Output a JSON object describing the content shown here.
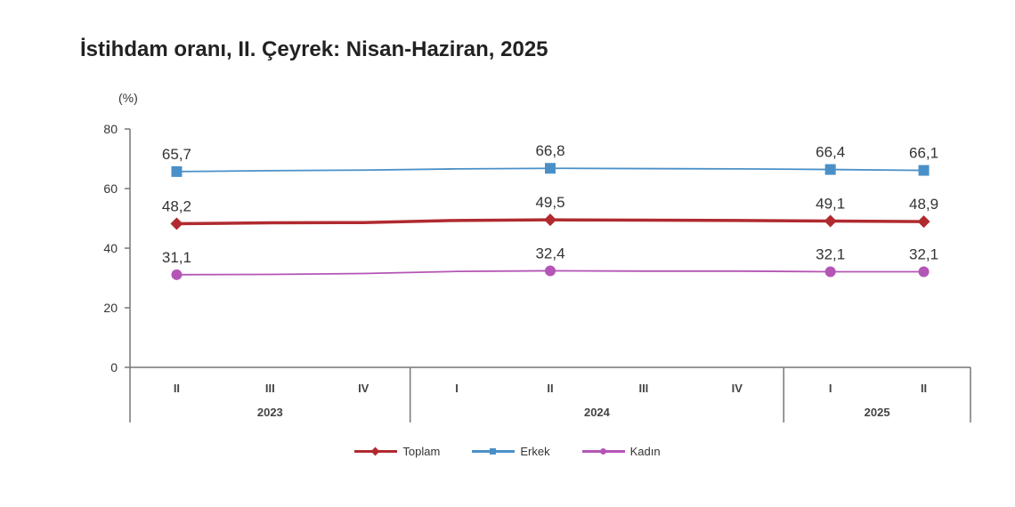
{
  "chart_data": {
    "type": "line",
    "title": "İstihdam oranı, II. Çeyrek: Nisan-Haziran, 2025",
    "y_unit_label": "(%)",
    "ylim": [
      0,
      80
    ],
    "yticks": [
      0,
      20,
      40,
      60,
      80
    ],
    "grid": false,
    "legend_position": "bottom",
    "categories": [
      "II",
      "III",
      "IV",
      "I",
      "II",
      "III",
      "IV",
      "I",
      "II"
    ],
    "year_groups": [
      {
        "label": "2023",
        "quarters": [
          "II",
          "III",
          "IV"
        ]
      },
      {
        "label": "2024",
        "quarters": [
          "I",
          "II",
          "III",
          "IV"
        ]
      },
      {
        "label": "2025",
        "quarters": [
          "I",
          "II"
        ]
      }
    ],
    "series": [
      {
        "name": "Toplam",
        "color": "#b02a2f",
        "marker": "diamond",
        "values": [
          48.2,
          48.5,
          48.6,
          49.3,
          49.5,
          49.4,
          49.3,
          49.1,
          48.9
        ],
        "labels": [
          "48,2",
          "",
          "",
          "",
          "49,5",
          "",
          "",
          "49,1",
          "48,9"
        ]
      },
      {
        "name": "Erkek",
        "color": "#4a90c8",
        "marker": "square",
        "values": [
          65.7,
          66.0,
          66.2,
          66.6,
          66.8,
          66.7,
          66.6,
          66.4,
          66.1
        ],
        "labels": [
          "65,7",
          "",
          "",
          "",
          "66,8",
          "",
          "",
          "66,4",
          "66,1"
        ]
      },
      {
        "name": "Kadın",
        "color": "#b455b6",
        "marker": "circle",
        "values": [
          31.1,
          31.2,
          31.5,
          32.2,
          32.4,
          32.3,
          32.3,
          32.1,
          32.1
        ],
        "labels": [
          "31,1",
          "",
          "",
          "",
          "32,4",
          "",
          "",
          "32,1",
          "32,1"
        ]
      }
    ]
  }
}
